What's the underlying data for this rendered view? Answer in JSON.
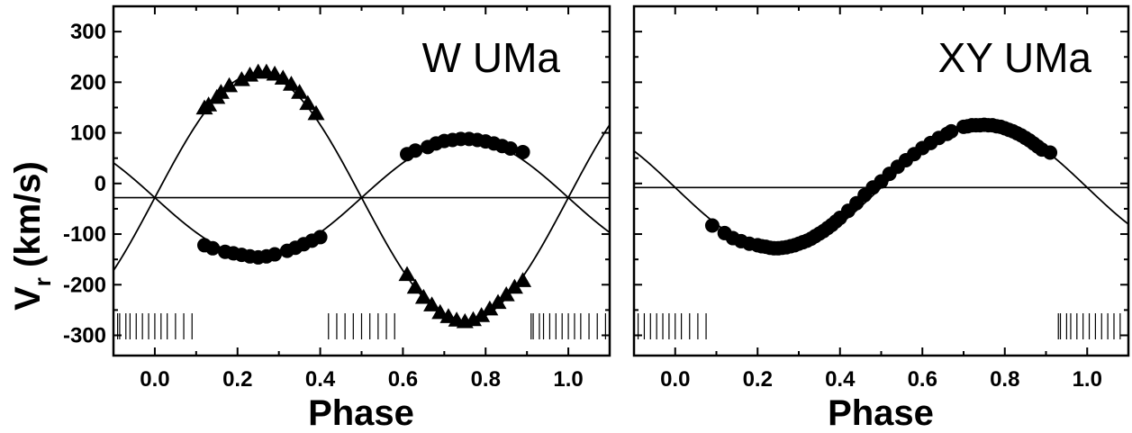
{
  "figure": {
    "ylabel_main": "V",
    "ylabel_sub": "r",
    "ylabel_rest": " (km/s)"
  },
  "chart_data": [
    {
      "type": "scatter",
      "title": "W UMa",
      "xlabel": "Phase",
      "ylabel": "Vr (km/s)",
      "xlim": [
        -0.1,
        1.1
      ],
      "ylim": [
        -340,
        350
      ],
      "xticks": [
        0.0,
        0.2,
        0.4,
        0.6,
        0.8,
        1.0
      ],
      "xtick_labels": [
        "0.0",
        "0.2",
        "0.4",
        "0.6",
        "0.8",
        "1.0"
      ],
      "yticks": [
        -300,
        -200,
        -100,
        0,
        100,
        200,
        300
      ],
      "ytick_labels": [
        "-300",
        "-200",
        "-100",
        "0",
        "100",
        "200",
        "300"
      ],
      "gamma": -28,
      "series": [
        {
          "marker": "triangle",
          "x": [
            0.12,
            0.13,
            0.15,
            0.16,
            0.18,
            0.21,
            0.23,
            0.25,
            0.27,
            0.29,
            0.31,
            0.33,
            0.35,
            0.37,
            0.39,
            0.61,
            0.63,
            0.65,
            0.67,
            0.69,
            0.71,
            0.73,
            0.75,
            0.77,
            0.79,
            0.81,
            0.83,
            0.85,
            0.87,
            0.89
          ],
          "y": [
            149,
            155,
            170,
            180,
            193,
            205,
            214,
            220,
            220,
            216,
            208,
            196,
            180,
            158,
            138,
            -180,
            -205,
            -225,
            -240,
            -255,
            -263,
            -270,
            -273,
            -269,
            -261,
            -248,
            -235,
            -220,
            -205,
            -192
          ]
        },
        {
          "marker": "circle",
          "x": [
            0.12,
            0.14,
            0.17,
            0.19,
            0.21,
            0.23,
            0.25,
            0.27,
            0.29,
            0.32,
            0.34,
            0.36,
            0.38,
            0.4,
            0.61,
            0.63,
            0.66,
            0.68,
            0.7,
            0.72,
            0.74,
            0.76,
            0.78,
            0.8,
            0.82,
            0.84,
            0.86,
            0.89
          ],
          "y": [
            -122,
            -128,
            -135,
            -138,
            -141,
            -144,
            -146,
            -144,
            -140,
            -133,
            -127,
            -120,
            -113,
            -106,
            58,
            65,
            72,
            79,
            84,
            86,
            88,
            88,
            86,
            83,
            79,
            74,
            69,
            62
          ]
        }
      ],
      "fit_curves": [
        {
          "K": 245,
          "phase_offset": 0,
          "sign": 1
        },
        {
          "K": 117,
          "phase_offset": 0,
          "sign": -1
        }
      ],
      "observation_ticks_x": [
        -0.09,
        -0.085,
        -0.07,
        -0.06,
        -0.045,
        -0.03,
        -0.015,
        0.0,
        0.015,
        0.03,
        0.05,
        0.07,
        0.09,
        0.42,
        0.44,
        0.46,
        0.48,
        0.5,
        0.52,
        0.54,
        0.56,
        0.58,
        0.91,
        0.915,
        0.93,
        0.94,
        0.955,
        0.97,
        0.985,
        1.0,
        1.015,
        1.03,
        1.05,
        1.07,
        1.09
      ]
    },
    {
      "type": "scatter",
      "title": "XY UMa",
      "xlabel": "Phase",
      "ylabel": "",
      "xlim": [
        -0.1,
        1.1
      ],
      "ylim": [
        -340,
        350
      ],
      "xticks": [
        0.0,
        0.2,
        0.4,
        0.6,
        0.8,
        1.0
      ],
      "xtick_labels": [
        "0.0",
        "0.2",
        "0.4",
        "0.6",
        "0.8",
        "1.0"
      ],
      "yticks": [
        -300,
        -200,
        -100,
        0,
        100,
        200,
        300
      ],
      "ytick_labels": [],
      "gamma": -8,
      "series": [
        {
          "marker": "circle",
          "x": [
            0.09,
            0.12,
            0.14,
            0.16,
            0.18,
            0.2,
            0.21,
            0.22,
            0.23,
            0.24,
            0.25,
            0.26,
            0.27,
            0.28,
            0.29,
            0.3,
            0.31,
            0.32,
            0.33,
            0.34,
            0.35,
            0.36,
            0.37,
            0.38,
            0.39,
            0.4,
            0.42,
            0.44,
            0.46,
            0.48,
            0.5,
            0.52,
            0.54,
            0.56,
            0.58,
            0.6,
            0.62,
            0.64,
            0.66,
            0.67,
            0.7,
            0.71,
            0.72,
            0.73,
            0.74,
            0.75,
            0.76,
            0.77,
            0.78,
            0.79,
            0.8,
            0.81,
            0.82,
            0.83,
            0.84,
            0.85,
            0.86,
            0.87,
            0.88,
            0.89,
            0.91
          ],
          "y": [
            -83,
            -98,
            -108,
            -114,
            -119,
            -122,
            -124,
            -125,
            -127,
            -128,
            -128,
            -127,
            -126,
            -124,
            -122,
            -119,
            -116,
            -113,
            -109,
            -104,
            -99,
            -94,
            -88,
            -82,
            -75,
            -68,
            -54,
            -39,
            -23,
            -8,
            4,
            19,
            33,
            46,
            58,
            70,
            80,
            90,
            98,
            103,
            112,
            113,
            115,
            115,
            115,
            116,
            115,
            115,
            113,
            112,
            109,
            106,
            103,
            99,
            95,
            90,
            85,
            79,
            73,
            67,
            61
          ]
        }
      ],
      "fit_curves": [
        {
          "K": 123,
          "phase_offset": 0,
          "sign": -1
        }
      ],
      "observation_ticks_x": [
        -0.09,
        -0.075,
        -0.06,
        -0.045,
        -0.03,
        -0.015,
        0.0,
        0.015,
        0.035,
        0.055,
        0.075,
        0.93,
        0.935,
        0.95,
        0.96,
        0.975,
        0.99,
        1.005,
        1.02,
        1.035,
        1.05,
        1.065,
        1.08
      ]
    }
  ]
}
